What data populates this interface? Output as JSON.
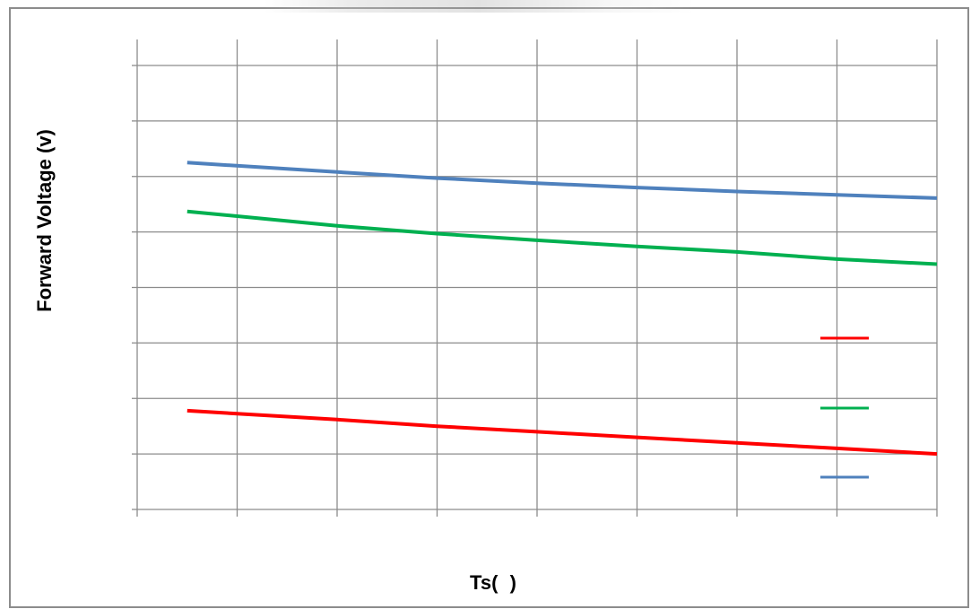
{
  "chart_data": {
    "type": "line",
    "ylabel": "Forward Voltage (v)",
    "xlabel": "Ts(   )",
    "grid": true,
    "legend_position": "right",
    "xlim": [
      0,
      8
    ],
    "ylim": [
      0,
      8
    ],
    "x_divisions": 8,
    "y_divisions": 8,
    "series": [
      {
        "color": "#4f81bd",
        "x": [
          0.5,
          2,
          3,
          4,
          5,
          6,
          7,
          8
        ],
        "y": [
          6.25,
          6.08,
          5.97,
          5.88,
          5.8,
          5.73,
          5.67,
          5.61
        ]
      },
      {
        "color": "#00b050",
        "x": [
          0.5,
          2,
          3,
          4,
          5,
          6,
          7,
          8
        ],
        "y": [
          5.37,
          5.11,
          4.97,
          4.85,
          4.74,
          4.64,
          4.51,
          4.42
        ]
      },
      {
        "color": "#ff0000",
        "x": [
          0.5,
          2,
          3,
          4,
          5,
          6,
          7,
          8
        ],
        "y": [
          1.78,
          1.62,
          1.5,
          1.4,
          1.3,
          1.2,
          1.1,
          1.0
        ]
      }
    ],
    "legend_order": [
      "#ff0000",
      "#00b050",
      "#4f81bd"
    ]
  }
}
